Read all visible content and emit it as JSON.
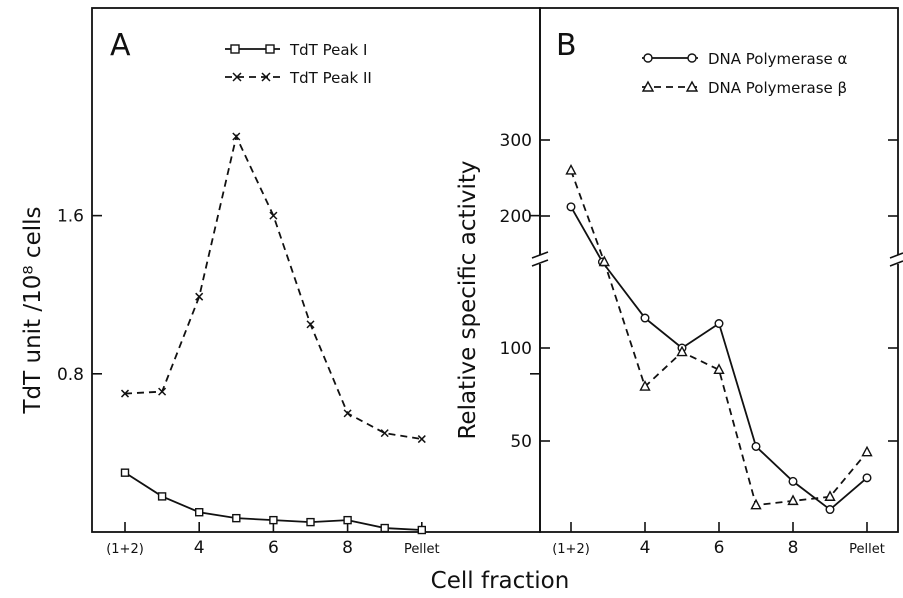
{
  "chart_data": [
    {
      "panel_label": "A",
      "type": "line",
      "x_tick_labels": [
        "(1+2)",
        "4",
        "6",
        "8",
        "Pellet"
      ],
      "x_tick_positions": [
        2,
        4,
        6,
        8,
        10
      ],
      "ylabel": "TdT unit /10⁸ cells",
      "y_tick_labels": [
        "0.8",
        "1.6"
      ],
      "y_tick_values": [
        0.8,
        1.6
      ],
      "ylim": [
        0.0,
        2.65
      ],
      "xlim": [
        1.5,
        10.5
      ],
      "legend_position": "top",
      "series": [
        {
          "name": "TdT Peak I",
          "marker": "square",
          "style": "solid",
          "x": [
            2,
            3,
            4,
            5,
            6,
            7,
            8,
            9,
            10
          ],
          "y": [
            0.3,
            0.18,
            0.1,
            0.07,
            0.06,
            0.05,
            0.06,
            0.02,
            0.01
          ]
        },
        {
          "name": "TdT Peak II",
          "marker": "x",
          "style": "dashed",
          "x": [
            2,
            3,
            4,
            5,
            6,
            7,
            8,
            9,
            10
          ],
          "y": [
            0.7,
            0.71,
            1.19,
            2.0,
            1.6,
            1.05,
            0.6,
            0.5,
            0.47
          ]
        }
      ]
    },
    {
      "panel_label": "B",
      "type": "line",
      "x_tick_labels": [
        "(1+2)",
        "4",
        "6",
        "8",
        "Pellet"
      ],
      "x_tick_positions": [
        2,
        4,
        6,
        8,
        10
      ],
      "ylabel": "Relative specific activity",
      "y_scale": "log",
      "y_axis_break": [
        200,
        150
      ],
      "y_tick_labels": [
        "50",
        "100",
        "200",
        "300"
      ],
      "y_tick_values": [
        50,
        100,
        200,
        300
      ],
      "xlim": [
        1.5,
        10.5
      ],
      "legend_position": "top-right",
      "series": [
        {
          "name": "DNA Polymerase α",
          "marker": "circle",
          "style": "solid",
          "x": [
            2,
            2.85,
            4,
            5,
            6,
            7,
            8,
            9,
            10
          ],
          "y": [
            210,
            180,
            125,
            100,
            120,
            48,
            37,
            30,
            38
          ]
        },
        {
          "name": "DNA Polymerase β",
          "marker": "triangle",
          "style": "dashed",
          "x": [
            2,
            2.9,
            4,
            5,
            6,
            7,
            8,
            9,
            10
          ],
          "y": [
            255,
            185,
            75,
            97,
            85,
            31,
            32,
            33,
            46
          ]
        }
      ]
    }
  ],
  "shared_xlabel": "Cell fraction"
}
